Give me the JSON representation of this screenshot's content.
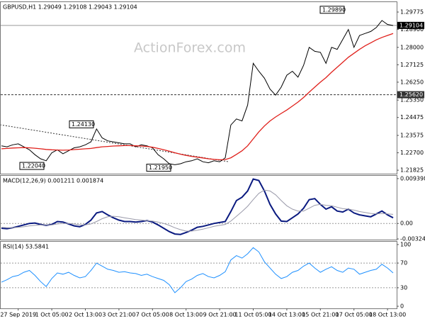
{
  "chart_data": [
    {
      "type": "line",
      "header": "GBPUSD,H1  1.29049 1.29108 1.29043 1.29104",
      "watermark": "ActionForex.com",
      "ylim": [
        1.2165,
        1.3031
      ],
      "yticks": [
        1.29775,
        {
          "value": 1.289,
          "label": "1.28900"
        },
        {
          "value": 1.28,
          "label": "1.28000"
        },
        1.27125,
        {
          "value": 1.2625,
          "label": "1.26250"
        },
        {
          "value": 1.2535,
          "label": "1.25350"
        },
        1.24475,
        1.23575,
        {
          "value": 1.227,
          "label": "1.22700"
        },
        1.21825
      ],
      "levels": [
        1.29104,
        {
          "value": 1.2562,
          "label": "1.25620"
        }
      ],
      "annotations": [
        {
          "value": 1.2989,
          "label": "1.29890"
        },
        {
          "value": 1.2413,
          "label": "1.24130"
        },
        {
          "value": 1.2204,
          "label": "1.22040"
        },
        {
          "value": 1.2195,
          "label": "1.21950"
        }
      ],
      "grid": false,
      "series": [
        {
          "color": "#000000",
          "values": [
            1.2305,
            1.23,
            1.231,
            1.2315,
            1.23,
            1.2285,
            1.226,
            1.224,
            1.223,
            1.227,
            1.2285,
            1.2265,
            1.228,
            1.2295,
            1.23,
            1.231,
            1.2325,
            1.239,
            1.2345,
            1.233,
            1.2325,
            1.232,
            1.2315,
            1.2315,
            1.23,
            1.231,
            1.2305,
            1.2295,
            1.226,
            1.224,
            1.2215,
            1.221,
            1.2215,
            1.2225,
            1.223,
            1.224,
            1.2225,
            1.222,
            1.223,
            1.2225,
            1.2245,
            1.241,
            1.244,
            1.243,
            1.251,
            1.272,
            1.268,
            1.2645,
            1.259,
            1.256,
            1.26,
            1.266,
            1.268,
            1.265,
            1.271,
            1.28,
            1.278,
            1.2775,
            1.272,
            1.28,
            1.279,
            1.284,
            1.289,
            1.28,
            1.286,
            1.287,
            1.288,
            1.29,
            1.2935,
            1.2915,
            1.291
          ]
        },
        {
          "color": "#e0201b",
          "values": [
            1.229,
            1.2292,
            1.2294,
            1.2295,
            1.2296,
            1.2295,
            1.2293,
            1.229,
            1.2287,
            1.2285,
            1.2284,
            1.2283,
            1.2284,
            1.2286,
            1.2288,
            1.229,
            1.2292,
            1.2296,
            1.23,
            1.2302,
            1.2304,
            1.2305,
            1.2306,
            1.2306,
            1.2305,
            1.2304,
            1.2302,
            1.2298,
            1.2292,
            1.2285,
            1.2278,
            1.227,
            1.2263,
            1.2257,
            1.2252,
            1.2248,
            1.2244,
            1.224,
            1.2237,
            1.2235,
            1.2236,
            1.2245,
            1.2262,
            1.228,
            1.2305,
            1.234,
            1.2375,
            1.2405,
            1.243,
            1.245,
            1.2468,
            1.2485,
            1.2505,
            1.2525,
            1.2548,
            1.2575,
            1.26,
            1.2625,
            1.2648,
            1.2675,
            1.27,
            1.2725,
            1.275,
            1.277,
            1.279,
            1.2808,
            1.2823,
            1.2838,
            1.285,
            1.286,
            1.287
          ]
        }
      ]
    },
    {
      "type": "line",
      "header": "MACD(12,26,9) 0.001211 0.001874",
      "ylim": [
        -0.00338,
        0.01013
      ],
      "yticks": [
        0.009398,
        {
          "value": 0,
          "label": "0.00"
        },
        -0.00324
      ],
      "grid": true,
      "series": [
        {
          "color": "#0a1a80",
          "values": [
            -0.001,
            -0.0011,
            -0.0009,
            -0.0006,
            -0.0003,
            0.0,
            0.0001,
            -0.0002,
            -0.0004,
            -0.0002,
            0.0004,
            0.0003,
            -0.0001,
            -0.0005,
            -0.0007,
            -0.0002,
            0.0007,
            0.0022,
            0.0025,
            0.0018,
            0.0012,
            0.0007,
            0.0004,
            0.0004,
            0.0003,
            0.0004,
            0.0006,
            0.0003,
            -0.0003,
            -0.001,
            -0.0017,
            -0.0022,
            -0.0023,
            -0.0019,
            -0.0014,
            -0.0008,
            -0.0006,
            -0.0003,
            0.0,
            0.0002,
            0.0004,
            0.0025,
            0.0048,
            0.0055,
            0.0068,
            0.0093,
            0.009,
            0.0068,
            0.004,
            0.002,
            0.0005,
            0.0004,
            0.0012,
            0.002,
            0.0032,
            0.005,
            0.0052,
            0.004,
            0.003,
            0.0035,
            0.0026,
            0.0024,
            0.003,
            0.0022,
            0.0018,
            0.0016,
            0.0014,
            0.002,
            0.0026,
            0.0018,
            0.0012
          ]
        },
        {
          "color": "#9a9aaa",
          "values": [
            -0.0008,
            -0.0009,
            -0.0009,
            -0.0008,
            -0.0007,
            -0.0005,
            -0.0004,
            -0.0003,
            -0.0003,
            -0.0003,
            -0.0001,
            0.0,
            0.0,
            -0.0001,
            -0.0003,
            -0.0003,
            -0.0001,
            0.0004,
            0.001,
            0.0014,
            0.0015,
            0.0014,
            0.0012,
            0.001,
            0.0008,
            0.0007,
            0.0006,
            0.0005,
            0.0003,
            0.0,
            -0.0004,
            -0.0009,
            -0.0013,
            -0.0016,
            -0.0016,
            -0.0014,
            -0.0012,
            -0.0009,
            -0.0006,
            -0.0004,
            -0.0002,
            0.0005,
            0.0015,
            0.0025,
            0.0036,
            0.005,
            0.0063,
            0.007,
            0.0068,
            0.006,
            0.0048,
            0.0037,
            0.003,
            0.0026,
            0.0026,
            0.0032,
            0.0038,
            0.004,
            0.0038,
            0.0037,
            0.0034,
            0.0031,
            0.003,
            0.0028,
            0.0025,
            0.0023,
            0.0021,
            0.002,
            0.0021,
            0.002,
            0.0019
          ]
        }
      ]
    },
    {
      "type": "line",
      "header": "RSI(14) 53.5841",
      "ylim": [
        -3.4,
        105.7
      ],
      "yticks": [
        100,
        70,
        30,
        0
      ],
      "grid": true,
      "x": [
        null,
        null,
        null,
        "27 Sep 2019",
        null,
        null,
        null,
        null,
        null,
        "1 Oct 05:00",
        null,
        null,
        null,
        null,
        null,
        "2 Oct 13:00",
        null,
        null,
        null,
        null,
        null,
        "3 Oct 21:00",
        null,
        null,
        null,
        null,
        null,
        "7 Oct 05:00",
        null,
        null,
        null,
        null,
        null,
        "8 Oct 13:00",
        null,
        null,
        null,
        null,
        null,
        "9 Oct 21:00",
        null,
        null,
        null,
        null,
        null,
        "11 Oct 05:00",
        null,
        null,
        null,
        null,
        null,
        "14 Oct 13:00",
        null,
        null,
        null,
        null,
        null,
        "15 Oct 21:00",
        null,
        null,
        null,
        null,
        null,
        "17 Oct 05:00",
        null,
        null,
        null,
        null,
        null,
        "18 Oct 13:00",
        null
      ],
      "series": [
        {
          "color": "#1e90ff",
          "values": [
            39,
            43,
            48,
            50,
            55,
            58,
            50,
            40,
            32,
            45,
            54,
            52,
            55,
            50,
            46,
            48,
            58,
            70,
            65,
            60,
            58,
            55,
            56,
            54,
            53,
            50,
            52,
            48,
            45,
            42,
            35,
            22,
            30,
            40,
            44,
            50,
            53,
            48,
            46,
            50,
            56,
            75,
            82,
            78,
            85,
            95,
            88,
            72,
            62,
            52,
            45,
            48,
            55,
            58,
            65,
            70,
            62,
            55,
            60,
            64,
            58,
            55,
            62,
            60,
            52,
            55,
            58,
            60,
            68,
            62,
            54
          ]
        }
      ]
    }
  ]
}
